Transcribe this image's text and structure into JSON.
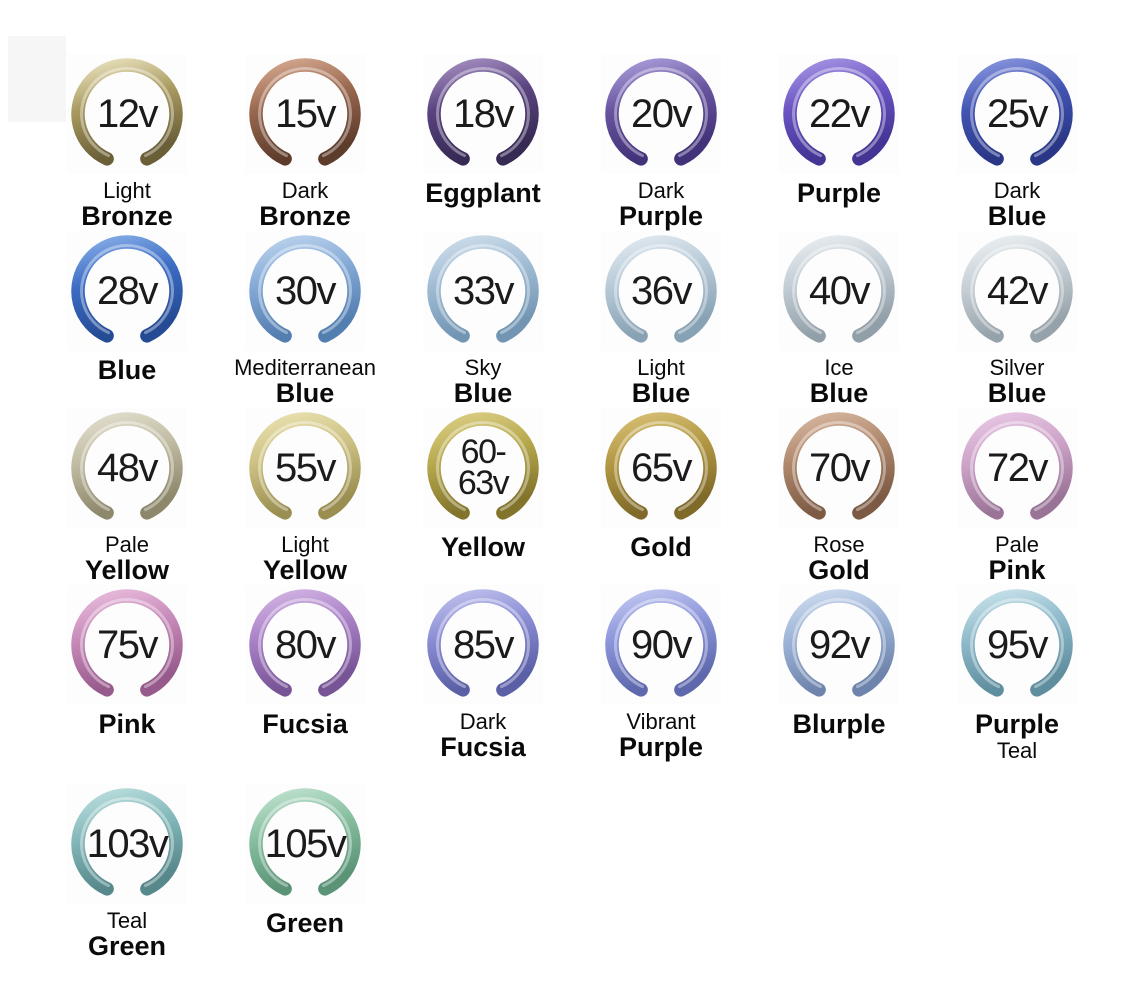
{
  "page": {
    "background": "#ffffff",
    "description_visible_text_only": true
  },
  "chart_data": {
    "type": "table",
    "title": "",
    "columns": [
      "voltage",
      "color_name"
    ],
    "rows": [
      {
        "voltage": "12v",
        "color_name": "Light Bronze",
        "swatch_hex": "#a99b60"
      },
      {
        "voltage": "15v",
        "color_name": "Dark Bronze",
        "swatch_hex": "#9a684f"
      },
      {
        "voltage": "18v",
        "color_name": "Eggplant",
        "swatch_hex": "#5a4480"
      },
      {
        "voltage": "20v",
        "color_name": "Dark Purple",
        "swatch_hex": "#68549f"
      },
      {
        "voltage": "22v",
        "color_name": "Purple",
        "swatch_hex": "#6a53c2"
      },
      {
        "voltage": "25v",
        "color_name": "Dark Blue",
        "swatch_hex": "#4255b2"
      },
      {
        "voltage": "28v",
        "color_name": "Blue",
        "swatch_hex": "#3d6cc4"
      },
      {
        "voltage": "30v",
        "color_name": "Mediterranean Blue",
        "swatch_hex": "#84a9d6"
      },
      {
        "voltage": "33v",
        "color_name": "Sky Blue",
        "swatch_hex": "#a0bcd4"
      },
      {
        "voltage": "36v",
        "color_name": "Light Blue",
        "swatch_hex": "#b7c9d7"
      },
      {
        "voltage": "40v",
        "color_name": "Ice Blue",
        "swatch_hex": "#c2ccd4"
      },
      {
        "voltage": "42v",
        "color_name": "Silver Blue",
        "swatch_hex": "#c7d0d6"
      },
      {
        "voltage": "48v",
        "color_name": "Pale Yellow",
        "swatch_hex": "#c0bba2"
      },
      {
        "voltage": "55v",
        "color_name": "Light Yellow",
        "swatch_hex": "#ccc182"
      },
      {
        "voltage": "60-63v",
        "color_name": "Yellow",
        "swatch_hex": "#b7a94e"
      },
      {
        "voltage": "65v",
        "color_name": "Gold",
        "swatch_hex": "#b29844"
      },
      {
        "voltage": "70v",
        "color_name": "Rose Gold",
        "swatch_hex": "#af886c"
      },
      {
        "voltage": "72v",
        "color_name": "Pale Pink",
        "swatch_hex": "#cda3c8"
      },
      {
        "voltage": "75v",
        "color_name": "Pink",
        "swatch_hex": "#c689b8"
      },
      {
        "voltage": "80v",
        "color_name": "Fucsia",
        "swatch_hex": "#a880c6"
      },
      {
        "voltage": "85v",
        "color_name": "Dark Fucsia",
        "swatch_hex": "#898cd3"
      },
      {
        "voltage": "90v",
        "color_name": "Vibrant Purple",
        "swatch_hex": "#8b95da"
      },
      {
        "voltage": "92v",
        "color_name": "Blurple",
        "swatch_hex": "#9cb2d6"
      },
      {
        "voltage": "95v",
        "color_name": "Purple Teal",
        "swatch_hex": "#8ebaca"
      },
      {
        "voltage": "103v",
        "color_name": "Teal Green",
        "swatch_hex": "#83b7b9"
      },
      {
        "voltage": "105v",
        "color_name": "Green",
        "swatch_hex": "#87bea0"
      }
    ]
  },
  "items": [
    {
      "voltage": "12v",
      "voltage_lines": [
        "12v"
      ],
      "name_lines": [
        {
          "text": "Light",
          "bold": false
        },
        {
          "text": "Bronze",
          "bold": true
        }
      ],
      "ring": {
        "light": "#e8e0bc",
        "main": "#a99b60",
        "dark": "#6b5f38"
      }
    },
    {
      "voltage": "15v",
      "voltage_lines": [
        "15v"
      ],
      "name_lines": [
        {
          "text": "Dark",
          "bold": false
        },
        {
          "text": "Bronze",
          "bold": true
        }
      ],
      "ring": {
        "light": "#d4a78e",
        "main": "#9a684f",
        "dark": "#5e3c2c"
      }
    },
    {
      "voltage": "18v",
      "voltage_lines": [
        "18v"
      ],
      "name_lines": [
        {
          "text": "Eggplant",
          "bold": true
        }
      ],
      "ring": {
        "light": "#a28cbf",
        "main": "#5a4480",
        "dark": "#372a54"
      }
    },
    {
      "voltage": "20v",
      "voltage_lines": [
        "20v"
      ],
      "name_lines": [
        {
          "text": "Dark",
          "bold": false
        },
        {
          "text": "Purple",
          "bold": true
        }
      ],
      "ring": {
        "light": "#a89bd8",
        "main": "#68549f",
        "dark": "#42327a"
      }
    },
    {
      "voltage": "22v",
      "voltage_lines": [
        "22v"
      ],
      "name_lines": [
        {
          "text": "Purple",
          "bold": true
        }
      ],
      "ring": {
        "light": "#a392e2",
        "main": "#6a53c2",
        "dark": "#443494"
      }
    },
    {
      "voltage": "25v",
      "voltage_lines": [
        "25v"
      ],
      "name_lines": [
        {
          "text": "Dark",
          "bold": false
        },
        {
          "text": "Blue",
          "bold": true
        }
      ],
      "ring": {
        "light": "#8794dc",
        "main": "#4255b2",
        "dark": "#2a3787"
      }
    },
    {
      "voltage": "28v",
      "voltage_lines": [
        "28v"
      ],
      "name_lines": [
        {
          "text": "Blue",
          "bold": true
        }
      ],
      "ring": {
        "light": "#84ace6",
        "main": "#3d6cc4",
        "dark": "#254b95"
      }
    },
    {
      "voltage": "30v",
      "voltage_lines": [
        "30v"
      ],
      "name_lines": [
        {
          "text": "Mediterranean",
          "bold": false
        },
        {
          "text": "Blue",
          "bold": true
        }
      ],
      "ring": {
        "light": "#bad2ec",
        "main": "#84a9d6",
        "dark": "#537eb0"
      }
    },
    {
      "voltage": "33v",
      "voltage_lines": [
        "33v"
      ],
      "name_lines": [
        {
          "text": "Sky",
          "bold": false
        },
        {
          "text": "Blue",
          "bold": true
        }
      ],
      "ring": {
        "light": "#ccdcea",
        "main": "#a0bcd4",
        "dark": "#7295b3"
      }
    },
    {
      "voltage": "36v",
      "voltage_lines": [
        "36v"
      ],
      "name_lines": [
        {
          "text": "Light",
          "bold": false
        },
        {
          "text": "Blue",
          "bold": true
        }
      ],
      "ring": {
        "light": "#dfe8ee",
        "main": "#b7c9d7",
        "dark": "#87a2b4"
      }
    },
    {
      "voltage": "40v",
      "voltage_lines": [
        "40v"
      ],
      "name_lines": [
        {
          "text": "Ice",
          "bold": false
        },
        {
          "text": "Blue",
          "bold": true
        }
      ],
      "ring": {
        "light": "#e7ecef",
        "main": "#c2ccd4",
        "dark": "#919fa9"
      }
    },
    {
      "voltage": "42v",
      "voltage_lines": [
        "42v"
      ],
      "name_lines": [
        {
          "text": "Silver",
          "bold": false
        },
        {
          "text": "Blue",
          "bold": true
        }
      ],
      "ring": {
        "light": "#e9eef1",
        "main": "#c7d0d6",
        "dark": "#96a2aa"
      }
    },
    {
      "voltage": "48v",
      "voltage_lines": [
        "48v"
      ],
      "name_lines": [
        {
          "text": "Pale",
          "bold": false
        },
        {
          "text": "Yellow",
          "bold": true
        }
      ],
      "ring": {
        "light": "#e1ddcc",
        "main": "#c0bba2",
        "dark": "#8d876b"
      }
    },
    {
      "voltage": "55v",
      "voltage_lines": [
        "55v"
      ],
      "name_lines": [
        {
          "text": "Light",
          "bold": false
        },
        {
          "text": "Yellow",
          "bold": true
        }
      ],
      "ring": {
        "light": "#e8e0af",
        "main": "#ccc182",
        "dark": "#9a8f51"
      }
    },
    {
      "voltage": "60-63v",
      "voltage_lines": [
        "60-",
        "63v"
      ],
      "name_lines": [
        {
          "text": "Yellow",
          "bold": true
        }
      ],
      "ring": {
        "light": "#dacd82",
        "main": "#b7a94e",
        "dark": "#82742b"
      }
    },
    {
      "voltage": "65v",
      "voltage_lines": [
        "65v"
      ],
      "name_lines": [
        {
          "text": "Gold",
          "bold": true
        }
      ],
      "ring": {
        "light": "#d6be72",
        "main": "#b29844",
        "dark": "#806a29"
      }
    },
    {
      "voltage": "70v",
      "voltage_lines": [
        "70v"
      ],
      "name_lines": [
        {
          "text": "Rose",
          "bold": false
        },
        {
          "text": "Gold",
          "bold": true
        }
      ],
      "ring": {
        "light": "#d6b49e",
        "main": "#af886c",
        "dark": "#7d5a44"
      }
    },
    {
      "voltage": "72v",
      "voltage_lines": [
        "72v"
      ],
      "name_lines": [
        {
          "text": "Pale",
          "bold": false
        },
        {
          "text": "Pink",
          "bold": true
        }
      ],
      "ring": {
        "light": "#e7c6e3",
        "main": "#cda3c8",
        "dark": "#9a7497"
      }
    },
    {
      "voltage": "75v",
      "voltage_lines": [
        "75v"
      ],
      "name_lines": [
        {
          "text": "Pink",
          "bold": true
        }
      ],
      "ring": {
        "light": "#e8badc",
        "main": "#c689b8",
        "dark": "#975a8c"
      }
    },
    {
      "voltage": "80v",
      "voltage_lines": [
        "80v"
      ],
      "name_lines": [
        {
          "text": "Fucsia",
          "bold": true
        }
      ],
      "ring": {
        "light": "#d1b2e2",
        "main": "#a880c6",
        "dark": "#775496"
      }
    },
    {
      "voltage": "85v",
      "voltage_lines": [
        "85v"
      ],
      "name_lines": [
        {
          "text": "Dark",
          "bold": false
        },
        {
          "text": "Fucsia",
          "bold": true
        }
      ],
      "ring": {
        "light": "#bdbfec",
        "main": "#898cd3",
        "dark": "#5b5fa6"
      }
    },
    {
      "voltage": "90v",
      "voltage_lines": [
        "90v"
      ],
      "name_lines": [
        {
          "text": "Vibrant",
          "bold": false
        },
        {
          "text": "Purple",
          "bold": true
        }
      ],
      "ring": {
        "light": "#c0c6f0",
        "main": "#8b95da",
        "dark": "#5e68ac"
      }
    },
    {
      "voltage": "92v",
      "voltage_lines": [
        "92v"
      ],
      "name_lines": [
        {
          "text": "Blurple",
          "bold": true
        }
      ],
      "ring": {
        "light": "#ccdaee",
        "main": "#9cb2d6",
        "dark": "#6e84ac"
      }
    },
    {
      "voltage": "95v",
      "voltage_lines": [
        "95v"
      ],
      "name_lines": [
        {
          "text": "Purple",
          "bold": true
        },
        {
          "text": "Teal",
          "bold": false
        }
      ],
      "ring": {
        "light": "#c6e1ea",
        "main": "#8ebaca",
        "dark": "#5f8e9e"
      }
    },
    {
      "voltage": "103v",
      "voltage_lines": [
        "103v"
      ],
      "name_lines": [
        {
          "text": "Teal",
          "bold": false
        },
        {
          "text": "Green",
          "bold": true
        }
      ],
      "ring": {
        "light": "#badddd",
        "main": "#83b7b9",
        "dark": "#57888b"
      }
    },
    {
      "voltage": "105v",
      "voltage_lines": [
        "105v"
      ],
      "name_lines": [
        {
          "text": "Green",
          "bold": true
        }
      ],
      "ring": {
        "light": "#bde0cc",
        "main": "#87bea0",
        "dark": "#5a9376"
      }
    }
  ]
}
